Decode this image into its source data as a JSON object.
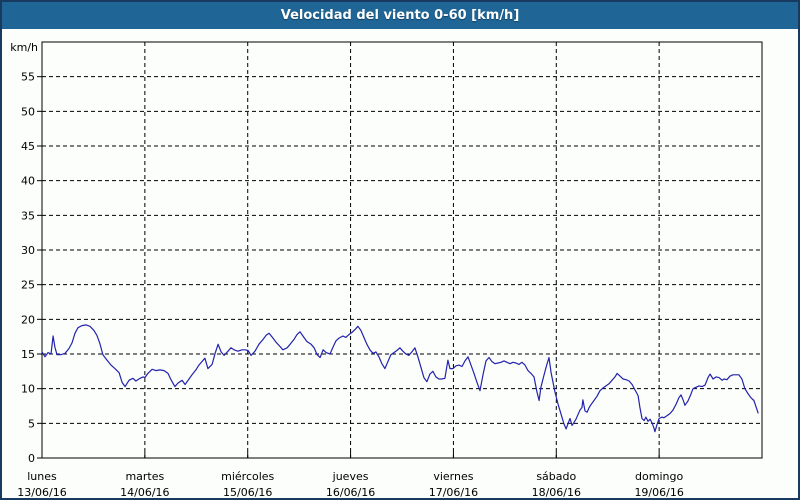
{
  "window": {
    "title": "Velocidad del viento 0-60 [km/h]"
  },
  "colors": {
    "title_bar": "#1f6697",
    "outer_border": "#163a60",
    "page_background": "#fcfefb",
    "grid": "#000000",
    "axis": "#000000",
    "line": "#2323ad",
    "label_text": "#000000",
    "title_text": "#ffffff"
  },
  "chart_data": {
    "type": "line",
    "title": "Velocidad del viento 0-60 [km/h]",
    "ylabel": "km/h",
    "xlabel": "",
    "ylim": [
      0,
      60
    ],
    "y_ticks": [
      0,
      5,
      10,
      15,
      20,
      25,
      30,
      35,
      40,
      45,
      50,
      55
    ],
    "grid": "dashed",
    "legend_position": "none",
    "x_axis_hours_total": 168,
    "x_day_ticks_hours": [
      0,
      24,
      48,
      72,
      96,
      120,
      144
    ],
    "x_day_labels": [
      {
        "name": "lunes",
        "date": "13/06/16"
      },
      {
        "name": "martes",
        "date": "14/06/16"
      },
      {
        "name": "miércoles",
        "date": "15/06/16"
      },
      {
        "name": "jueves",
        "date": "16/06/16"
      },
      {
        "name": "viernes",
        "date": "17/06/16"
      },
      {
        "name": "sábado",
        "date": "18/06/16"
      },
      {
        "name": "domingo",
        "date": "19/06/16"
      }
    ],
    "series": [
      {
        "name": "velocidad del viento",
        "unit": "km/h",
        "color": "#2323ad",
        "points": [
          [
            0,
            15.3
          ],
          [
            0.7,
            14.6
          ],
          [
            1.4,
            15.2
          ],
          [
            2.1,
            15.0
          ],
          [
            2.6,
            17.6
          ],
          [
            3.0,
            16.0
          ],
          [
            3.5,
            14.9
          ],
          [
            4.4,
            14.9
          ],
          [
            5.4,
            15.1
          ],
          [
            6.3,
            15.8
          ],
          [
            7.0,
            16.6
          ],
          [
            7.7,
            18.0
          ],
          [
            8.4,
            18.8
          ],
          [
            9.3,
            19.1
          ],
          [
            10.3,
            19.2
          ],
          [
            11.2,
            19.0
          ],
          [
            12.1,
            18.4
          ],
          [
            12.8,
            17.7
          ],
          [
            13.5,
            16.5
          ],
          [
            14.2,
            14.9
          ],
          [
            15.2,
            14.1
          ],
          [
            16.1,
            13.4
          ],
          [
            17.0,
            12.9
          ],
          [
            18.0,
            12.3
          ],
          [
            18.7,
            10.9
          ],
          [
            19.4,
            10.3
          ],
          [
            20.3,
            11.2
          ],
          [
            21.2,
            11.5
          ],
          [
            21.9,
            11.1
          ],
          [
            22.9,
            11.5
          ],
          [
            23.6,
            11.7
          ],
          [
            24.0,
            11.6
          ],
          [
            24.7,
            12.2
          ],
          [
            25.7,
            12.8
          ],
          [
            26.6,
            12.6
          ],
          [
            27.5,
            12.7
          ],
          [
            28.5,
            12.6
          ],
          [
            29.4,
            12.2
          ],
          [
            30.1,
            11.3
          ],
          [
            31.0,
            10.3
          ],
          [
            31.7,
            10.8
          ],
          [
            32.7,
            11.2
          ],
          [
            33.4,
            10.6
          ],
          [
            34.3,
            11.4
          ],
          [
            35.0,
            12.0
          ],
          [
            35.9,
            12.7
          ],
          [
            36.6,
            13.4
          ],
          [
            37.3,
            13.9
          ],
          [
            38.0,
            14.4
          ],
          [
            38.7,
            12.9
          ],
          [
            39.7,
            13.5
          ],
          [
            40.4,
            15.1
          ],
          [
            41.1,
            16.4
          ],
          [
            41.8,
            15.3
          ],
          [
            42.5,
            14.8
          ],
          [
            43.4,
            15.4
          ],
          [
            44.1,
            15.9
          ],
          [
            44.8,
            15.6
          ],
          [
            45.7,
            15.4
          ],
          [
            46.7,
            15.6
          ],
          [
            47.4,
            15.6
          ],
          [
            48.1,
            15.5
          ],
          [
            48.8,
            14.8
          ],
          [
            49.7,
            15.4
          ],
          [
            50.6,
            16.4
          ],
          [
            51.6,
            17.1
          ],
          [
            52.3,
            17.7
          ],
          [
            53.0,
            18.0
          ],
          [
            53.9,
            17.3
          ],
          [
            54.6,
            16.7
          ],
          [
            55.5,
            16.1
          ],
          [
            56.2,
            15.6
          ],
          [
            57.2,
            15.9
          ],
          [
            57.9,
            16.4
          ],
          [
            58.8,
            17.1
          ],
          [
            59.5,
            17.8
          ],
          [
            60.2,
            18.2
          ],
          [
            61.1,
            17.4
          ],
          [
            61.8,
            16.8
          ],
          [
            62.8,
            16.4
          ],
          [
            63.5,
            15.9
          ],
          [
            64.2,
            14.9
          ],
          [
            64.9,
            14.5
          ],
          [
            65.6,
            15.6
          ],
          [
            66.3,
            15.2
          ],
          [
            67.2,
            15.0
          ],
          [
            67.9,
            16.0
          ],
          [
            68.6,
            16.9
          ],
          [
            69.3,
            17.3
          ],
          [
            70.2,
            17.6
          ],
          [
            70.9,
            17.4
          ],
          [
            71.6,
            17.8
          ],
          [
            72.3,
            18.1
          ],
          [
            73.0,
            18.5
          ],
          [
            73.7,
            19.0
          ],
          [
            74.4,
            18.4
          ],
          [
            75.1,
            17.4
          ],
          [
            75.8,
            16.4
          ],
          [
            76.5,
            15.6
          ],
          [
            77.2,
            15.1
          ],
          [
            77.9,
            15.3
          ],
          [
            78.6,
            14.6
          ],
          [
            79.3,
            13.6
          ],
          [
            80.0,
            12.9
          ],
          [
            80.7,
            13.9
          ],
          [
            81.4,
            14.9
          ],
          [
            82.1,
            15.2
          ],
          [
            82.8,
            15.5
          ],
          [
            83.5,
            15.9
          ],
          [
            84.2,
            15.4
          ],
          [
            84.9,
            15.0
          ],
          [
            85.6,
            14.8
          ],
          [
            86.3,
            15.3
          ],
          [
            87.0,
            15.9
          ],
          [
            87.7,
            14.6
          ],
          [
            88.4,
            13.1
          ],
          [
            89.1,
            11.6
          ],
          [
            89.8,
            11.0
          ],
          [
            90.5,
            12.1
          ],
          [
            91.2,
            12.5
          ],
          [
            91.9,
            11.7
          ],
          [
            92.6,
            11.4
          ],
          [
            93.3,
            11.4
          ],
          [
            94.0,
            11.5
          ],
          [
            94.7,
            14.1
          ],
          [
            95.2,
            12.9
          ],
          [
            95.9,
            12.9
          ],
          [
            96.6,
            13.3
          ],
          [
            97.3,
            13.4
          ],
          [
            98.0,
            13.2
          ],
          [
            98.7,
            14.0
          ],
          [
            99.4,
            14.6
          ],
          [
            100.1,
            13.4
          ],
          [
            100.8,
            12.2
          ],
          [
            101.5,
            10.9
          ],
          [
            102.2,
            9.7
          ],
          [
            102.9,
            12.0
          ],
          [
            103.6,
            14.0
          ],
          [
            104.3,
            14.5
          ],
          [
            105.0,
            13.9
          ],
          [
            105.7,
            13.6
          ],
          [
            106.4,
            13.7
          ],
          [
            107.1,
            13.8
          ],
          [
            107.8,
            14.0
          ],
          [
            108.5,
            13.8
          ],
          [
            109.2,
            13.6
          ],
          [
            109.9,
            13.8
          ],
          [
            110.6,
            13.7
          ],
          [
            111.3,
            13.5
          ],
          [
            112.0,
            13.8
          ],
          [
            112.7,
            13.4
          ],
          [
            113.4,
            12.6
          ],
          [
            114.1,
            12.2
          ],
          [
            114.8,
            11.7
          ],
          [
            115.5,
            9.5
          ],
          [
            116.0,
            8.3
          ],
          [
            116.4,
            10.2
          ],
          [
            117.1,
            11.9
          ],
          [
            117.8,
            13.5
          ],
          [
            118.3,
            14.5
          ],
          [
            118.8,
            12.3
          ],
          [
            119.2,
            11.0
          ],
          [
            119.7,
            9.5
          ],
          [
            120.4,
            7.8
          ],
          [
            120.9,
            6.8
          ],
          [
            121.3,
            5.9
          ],
          [
            121.8,
            4.9
          ],
          [
            122.3,
            4.2
          ],
          [
            122.7,
            4.9
          ],
          [
            123.2,
            5.7
          ],
          [
            123.7,
            4.7
          ],
          [
            124.1,
            5.1
          ],
          [
            124.6,
            5.6
          ],
          [
            125.1,
            6.3
          ],
          [
            125.5,
            6.9
          ],
          [
            126.0,
            7.3
          ],
          [
            126.2,
            8.4
          ],
          [
            126.7,
            6.8
          ],
          [
            127.2,
            6.6
          ],
          [
            127.6,
            7.2
          ],
          [
            128.1,
            7.7
          ],
          [
            128.8,
            8.3
          ],
          [
            129.5,
            8.9
          ],
          [
            130.2,
            9.7
          ],
          [
            130.9,
            10.1
          ],
          [
            131.6,
            10.4
          ],
          [
            132.3,
            10.7
          ],
          [
            133.0,
            11.2
          ],
          [
            133.7,
            11.7
          ],
          [
            134.2,
            12.2
          ],
          [
            134.9,
            11.8
          ],
          [
            135.6,
            11.4
          ],
          [
            136.3,
            11.3
          ],
          [
            137.0,
            11.1
          ],
          [
            137.7,
            10.6
          ],
          [
            138.4,
            9.8
          ],
          [
            139.1,
            9.0
          ],
          [
            139.5,
            7.3
          ],
          [
            140.0,
            5.7
          ],
          [
            140.5,
            5.4
          ],
          [
            140.9,
            5.9
          ],
          [
            141.4,
            5.3
          ],
          [
            141.9,
            5.6
          ],
          [
            142.3,
            5.1
          ],
          [
            142.8,
            4.3
          ],
          [
            143.0,
            3.8
          ],
          [
            143.5,
            4.8
          ],
          [
            144.0,
            5.7
          ],
          [
            144.7,
            5.9
          ],
          [
            145.1,
            5.8
          ],
          [
            145.8,
            6.1
          ],
          [
            146.5,
            6.4
          ],
          [
            147.2,
            6.9
          ],
          [
            147.9,
            7.7
          ],
          [
            148.6,
            8.7
          ],
          [
            149.1,
            9.1
          ],
          [
            149.6,
            8.4
          ],
          [
            150.0,
            7.6
          ],
          [
            150.7,
            8.2
          ],
          [
            151.4,
            9.2
          ],
          [
            151.9,
            10.0
          ],
          [
            152.6,
            10.2
          ],
          [
            153.3,
            10.4
          ],
          [
            154.0,
            10.3
          ],
          [
            154.7,
            10.5
          ],
          [
            155.4,
            11.6
          ],
          [
            155.9,
            12.1
          ],
          [
            156.6,
            11.4
          ],
          [
            157.3,
            11.7
          ],
          [
            158.0,
            11.6
          ],
          [
            158.7,
            11.2
          ],
          [
            159.1,
            11.4
          ],
          [
            159.8,
            11.3
          ],
          [
            160.5,
            11.8
          ],
          [
            161.2,
            12.0
          ],
          [
            161.9,
            12.0
          ],
          [
            162.6,
            12.0
          ],
          [
            163.3,
            11.4
          ],
          [
            164.0,
            10.0
          ],
          [
            164.7,
            9.3
          ],
          [
            165.4,
            8.7
          ],
          [
            166.1,
            8.3
          ],
          [
            166.6,
            7.4
          ],
          [
            167.1,
            6.5
          ]
        ]
      }
    ]
  }
}
